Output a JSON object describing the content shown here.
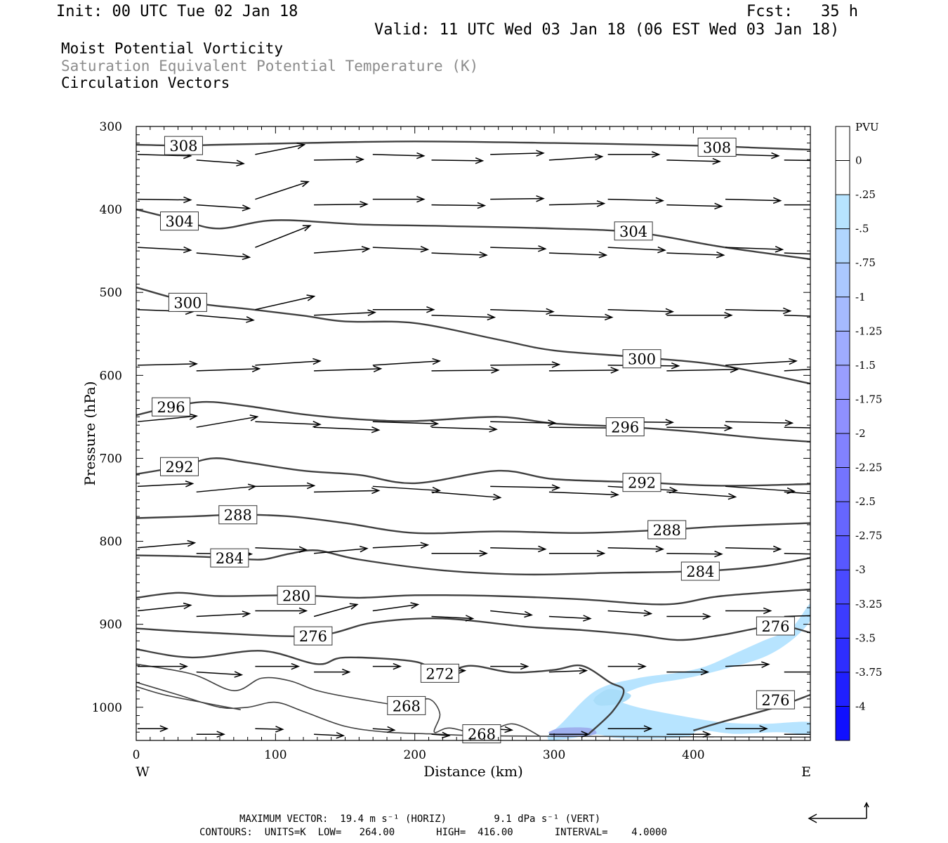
{
  "header": {
    "init": "Init: 00 UTC Tue 02 Jan 18",
    "fcst": "Fcst:   35 h",
    "valid": "Valid: 11 UTC Wed 03 Jan 18 (06 EST Wed 03 Jan 18)"
  },
  "titles": {
    "line1": "Moist Potential Vorticity",
    "line2": "Saturation Equivalent Potential Temperature (K)",
    "line3": "Circulation Vectors",
    "line2_color": "#8c8c8c"
  },
  "footer": {
    "max_vector": "MAXIMUM VECTOR:  19.4 m s⁻¹ (HORIZ)        9.1 dPa s⁻¹ (VERT)",
    "contours": "CONTOURS:  UNITS=K  LOW=   264.00       HIGH=  416.00       INTERVAL=    4.0000"
  },
  "chart_data": {
    "type": "cross-section",
    "xlabel": "Distance (km)",
    "ylabel": "Pressure (hPa)",
    "xlim": [
      0,
      484
    ],
    "ylim": [
      300,
      1040
    ],
    "y_log": false,
    "x_ticks": [
      0,
      100,
      200,
      300,
      400
    ],
    "y_ticks": [
      300,
      400,
      500,
      600,
      700,
      800,
      900,
      1000
    ],
    "x_end_labels": {
      "left": "W",
      "right": "E"
    },
    "contour_color": "#404040",
    "contour_labels": [
      {
        "text": "308",
        "x": 34,
        "p": 323
      },
      {
        "text": "308",
        "x": 417,
        "p": 325
      },
      {
        "text": "304",
        "x": 31,
        "p": 414
      },
      {
        "text": "304",
        "x": 357,
        "p": 426
      },
      {
        "text": "300",
        "x": 37,
        "p": 512
      },
      {
        "text": "300",
        "x": 363,
        "p": 580
      },
      {
        "text": "296",
        "x": 25,
        "p": 638
      },
      {
        "text": "296",
        "x": 351,
        "p": 662
      },
      {
        "text": "292",
        "x": 31,
        "p": 710
      },
      {
        "text": "292",
        "x": 363,
        "p": 729
      },
      {
        "text": "288",
        "x": 73,
        "p": 768
      },
      {
        "text": "288",
        "x": 381,
        "p": 786
      },
      {
        "text": "284",
        "x": 67,
        "p": 820
      },
      {
        "text": "284",
        "x": 405,
        "p": 836
      },
      {
        "text": "280",
        "x": 115,
        "p": 865
      },
      {
        "text": "276",
        "x": 127,
        "p": 914
      },
      {
        "text": "276",
        "x": 459,
        "p": 902
      },
      {
        "text": "276",
        "x": 459,
        "p": 991
      },
      {
        "text": "272",
        "x": 218,
        "p": 959
      },
      {
        "text": "268",
        "x": 194,
        "p": 998
      },
      {
        "text": "268",
        "x": 248,
        "p": 1032
      }
    ],
    "contours": [
      {
        "level": 308,
        "x": [
          0,
          34,
          60,
          120,
          200,
          300,
          400,
          450,
          484
        ],
        "p": [
          322,
          323,
          322,
          320,
          318,
          320,
          323,
          326,
          328
        ]
      },
      {
        "level": 304,
        "x": [
          0,
          34,
          60,
          100,
          160,
          220,
          300,
          360,
          420,
          484
        ],
        "p": [
          400,
          414,
          423,
          413,
          418,
          420,
          423,
          428,
          445,
          460
        ]
      },
      {
        "level": 300,
        "x": [
          0,
          40,
          80,
          120,
          150,
          200,
          260,
          300,
          360,
          420,
          484
        ],
        "p": [
          494,
          512,
          520,
          528,
          535,
          537,
          557,
          570,
          578,
          588,
          610
        ]
      },
      {
        "level": 296,
        "x": [
          0,
          25,
          50,
          80,
          120,
          160,
          200,
          260,
          300,
          351,
          400,
          450,
          484
        ],
        "p": [
          648,
          638,
          632,
          637,
          647,
          653,
          655,
          650,
          658,
          662,
          668,
          676,
          680
        ]
      },
      {
        "level": 292,
        "x": [
          0,
          31,
          55,
          80,
          120,
          160,
          200,
          260,
          300,
          363,
          420,
          484
        ],
        "p": [
          719,
          710,
          700,
          705,
          715,
          720,
          730,
          715,
          725,
          729,
          733,
          731
        ]
      },
      {
        "level": 288,
        "x": [
          0,
          40,
          73,
          110,
          150,
          200,
          260,
          320,
          381,
          420,
          484
        ],
        "p": [
          772,
          770,
          768,
          770,
          778,
          790,
          788,
          790,
          786,
          782,
          778
        ]
      },
      {
        "level": 284,
        "x": [
          0,
          35,
          67,
          90,
          110,
          130,
          160,
          220,
          280,
          340,
          405,
          450,
          484
        ],
        "p": [
          817,
          818,
          820,
          822,
          815,
          811,
          822,
          835,
          840,
          838,
          836,
          830,
          820
        ]
      },
      {
        "level": 280,
        "x": [
          0,
          30,
          60,
          115,
          160,
          200,
          260,
          320,
          380,
          420,
          484
        ],
        "p": [
          868,
          862,
          866,
          865,
          868,
          865,
          866,
          870,
          876,
          866,
          858
        ]
      },
      {
        "level": 276,
        "x": [
          0,
          50,
          127,
          170,
          220,
          280,
          320,
          360,
          390,
          420,
          459,
          484
        ],
        "p": [
          905,
          910,
          914,
          898,
          893,
          903,
          907,
          913,
          919,
          913,
          902,
          910
        ]
      },
      {
        "level": 272,
        "x": [
          0,
          40,
          90,
          130,
          150,
          200,
          218,
          240,
          270,
          300,
          320,
          340,
          350,
          342,
          325
        ],
        "p": [
          930,
          940,
          932,
          948,
          940,
          945,
          959,
          950,
          958,
          955,
          950,
          970,
          980,
          1005,
          1032
        ]
      },
      {
        "level": 268,
        "x": [
          0,
          40,
          70,
          90,
          110,
          130,
          160,
          194,
          210,
          218,
          214,
          225,
          248,
          270,
          290
        ],
        "p": [
          948,
          960,
          980,
          965,
          968,
          980,
          990,
          998,
          990,
          1008,
          1030,
          1025,
          1032,
          1020,
          1035
        ]
      },
      {
        "level": 264,
        "x": [
          0,
          30,
          60,
          80,
          100,
          120,
          150,
          180,
          210,
          240,
          300,
          484
        ],
        "p": [
          970,
          985,
          1000,
          1000,
          994,
          1005,
          1023,
          1030,
          1032,
          1034,
          1035,
          1036
        ]
      },
      {
        "level": 264,
        "x": [
          0,
          20,
          50,
          75
        ],
        "p": [
          975,
          985,
          995,
          1003
        ]
      },
      {
        "level": 276,
        "x": [
          400,
          420,
          459,
          484
        ],
        "p": [
          1028,
          1018,
          1000,
          985
        ]
      }
    ],
    "vector_rows": [
      {
        "p": 338,
        "dx": [
          27,
          24,
          25,
          25,
          26,
          26,
          27,
          27,
          26,
          27,
          27,
          28
        ],
        "dp": [
          2,
          5,
          -14,
          -1,
          2,
          1,
          -2,
          -5,
          0,
          2,
          2,
          1
        ]
      },
      {
        "p": 392,
        "dx": [
          27,
          27,
          27,
          27,
          26,
          27,
          27,
          28,
          28,
          28,
          28,
          28
        ],
        "dp": [
          1,
          5,
          -25,
          -1,
          0,
          1,
          -1,
          -2,
          2,
          2,
          2,
          0
        ]
      },
      {
        "p": 450,
        "dx": [
          27,
          27,
          28,
          28,
          28,
          28,
          28,
          29,
          29,
          29,
          29,
          29
        ],
        "dp": [
          4,
          6,
          -31,
          -6,
          3,
          3,
          2,
          3,
          4,
          3,
          3,
          3
        ]
      },
      {
        "p": 525,
        "dx": [
          28,
          29,
          30,
          31,
          31,
          32,
          32,
          32,
          33,
          33,
          33,
          33
        ],
        "dp": [
          3,
          7,
          -19,
          -4,
          0,
          3,
          3,
          3,
          3,
          0,
          2,
          3
        ]
      },
      {
        "p": 592,
        "dx": [
          30,
          32,
          33,
          34,
          34,
          34,
          35,
          35,
          36,
          36,
          36,
          37
        ],
        "dp": [
          -2,
          -3,
          -6,
          -3,
          -6,
          -1,
          -1,
          -1,
          1,
          -2,
          -6,
          -6
        ]
      },
      {
        "p": 660,
        "dx": [
          30,
          31,
          33,
          33,
          33,
          33,
          33,
          33,
          33,
          33,
          34,
          34
        ],
        "dp": [
          -8,
          -15,
          4,
          4,
          3,
          3,
          2,
          1,
          1,
          1,
          2,
          2
        ]
      },
      {
        "p": 738,
        "dx": [
          28,
          30,
          30,
          33,
          34,
          35,
          35,
          35,
          35,
          35,
          35,
          35
        ],
        "dp": [
          -4,
          -8,
          -1,
          -2,
          6,
          8,
          2,
          4,
          6,
          7,
          7,
          6
        ]
      },
      {
        "p": 812,
        "dx": [
          29,
          28,
          26,
          27,
          28,
          28,
          28,
          28,
          28,
          28,
          28,
          28
        ],
        "dp": [
          -7,
          1,
          3,
          -7,
          -4,
          0,
          2,
          0,
          2,
          1,
          2,
          2
        ]
      },
      {
        "p": 888,
        "dx": [
          27,
          27,
          26,
          22,
          23,
          21,
          21,
          21,
          22,
          22,
          23,
          24
        ],
        "dp": [
          -8,
          -4,
          0,
          -17,
          -9,
          3,
          6,
          3,
          4,
          0,
          0,
          -2
        ]
      },
      {
        "p": 955,
        "dx": [
          25,
          23,
          22,
          18,
          14,
          17,
          19,
          19,
          19,
          21,
          22,
          23
        ],
        "dp": [
          0,
          4,
          0,
          0,
          0,
          -2,
          0,
          -2,
          0,
          0,
          -3,
          0
        ]
      },
      {
        "p": 1030,
        "dx": [
          15,
          14,
          14,
          15,
          11,
          9,
          11,
          20,
          22,
          22,
          21,
          26
        ],
        "dp": [
          0,
          0,
          1,
          2,
          2,
          2,
          2,
          0,
          0,
          0,
          0,
          0
        ]
      }
    ],
    "pv_colorbar": {
      "label": "PVU",
      "ticks": [
        "0",
        "-.25",
        "-.5",
        "-.75",
        "-1",
        "-1.25",
        "-1.5",
        "-1.75",
        "-2",
        "-2.25",
        "-2.5",
        "-2.75",
        "-3",
        "-3.25",
        "-3.5",
        "-3.75",
        "-4"
      ],
      "colors": [
        "#ffffff",
        "#ffffff",
        "#b7e4ff",
        "#b1d6ff",
        "#abc8ff",
        "#a5baff",
        "#9facff",
        "#999eff",
        "#8f90ff",
        "#8282ff",
        "#7474ff",
        "#6666ff",
        "#5858ff",
        "#4a4aff",
        "#3c3cff",
        "#2e2eff",
        "#2020ff",
        "#1010ff"
      ]
    },
    "pv_regions": [
      {
        "level": "-.25",
        "color": "#b7e4ff",
        "x": [
          295,
          305,
          330,
          360,
          390,
          410,
          430,
          450,
          470,
          484,
          484,
          470,
          450,
          420,
          395,
          370,
          355,
          345,
          360,
          390,
          420,
          450,
          484,
          484,
          460,
          430,
          405,
          395,
          370,
          345,
          330,
          310,
          296
        ],
        "p": [
          1035,
          1020,
          980,
          965,
          958,
          950,
          935,
          920,
          905,
          875,
          895,
          920,
          940,
          955,
          965,
          972,
          980,
          990,
          1000,
          1010,
          1018,
          1020,
          1018,
          1032,
          1030,
          1032,
          1028,
          1036,
          1038,
          1037,
          1033,
          1038,
          1040
        ]
      },
      {
        "level": "-.5",
        "color": "#a9ddf9",
        "x": [
          330,
          340,
          355,
          348,
          333,
          328
        ],
        "p": [
          987,
          978,
          985,
          995,
          998,
          992
        ]
      },
      {
        "level": "-1",
        "color": "#9fb0ee",
        "x": [
          296,
          305,
          325,
          330,
          315,
          298
        ],
        "p": [
          1030,
          1025,
          1025,
          1032,
          1036,
          1036
        ]
      }
    ]
  }
}
